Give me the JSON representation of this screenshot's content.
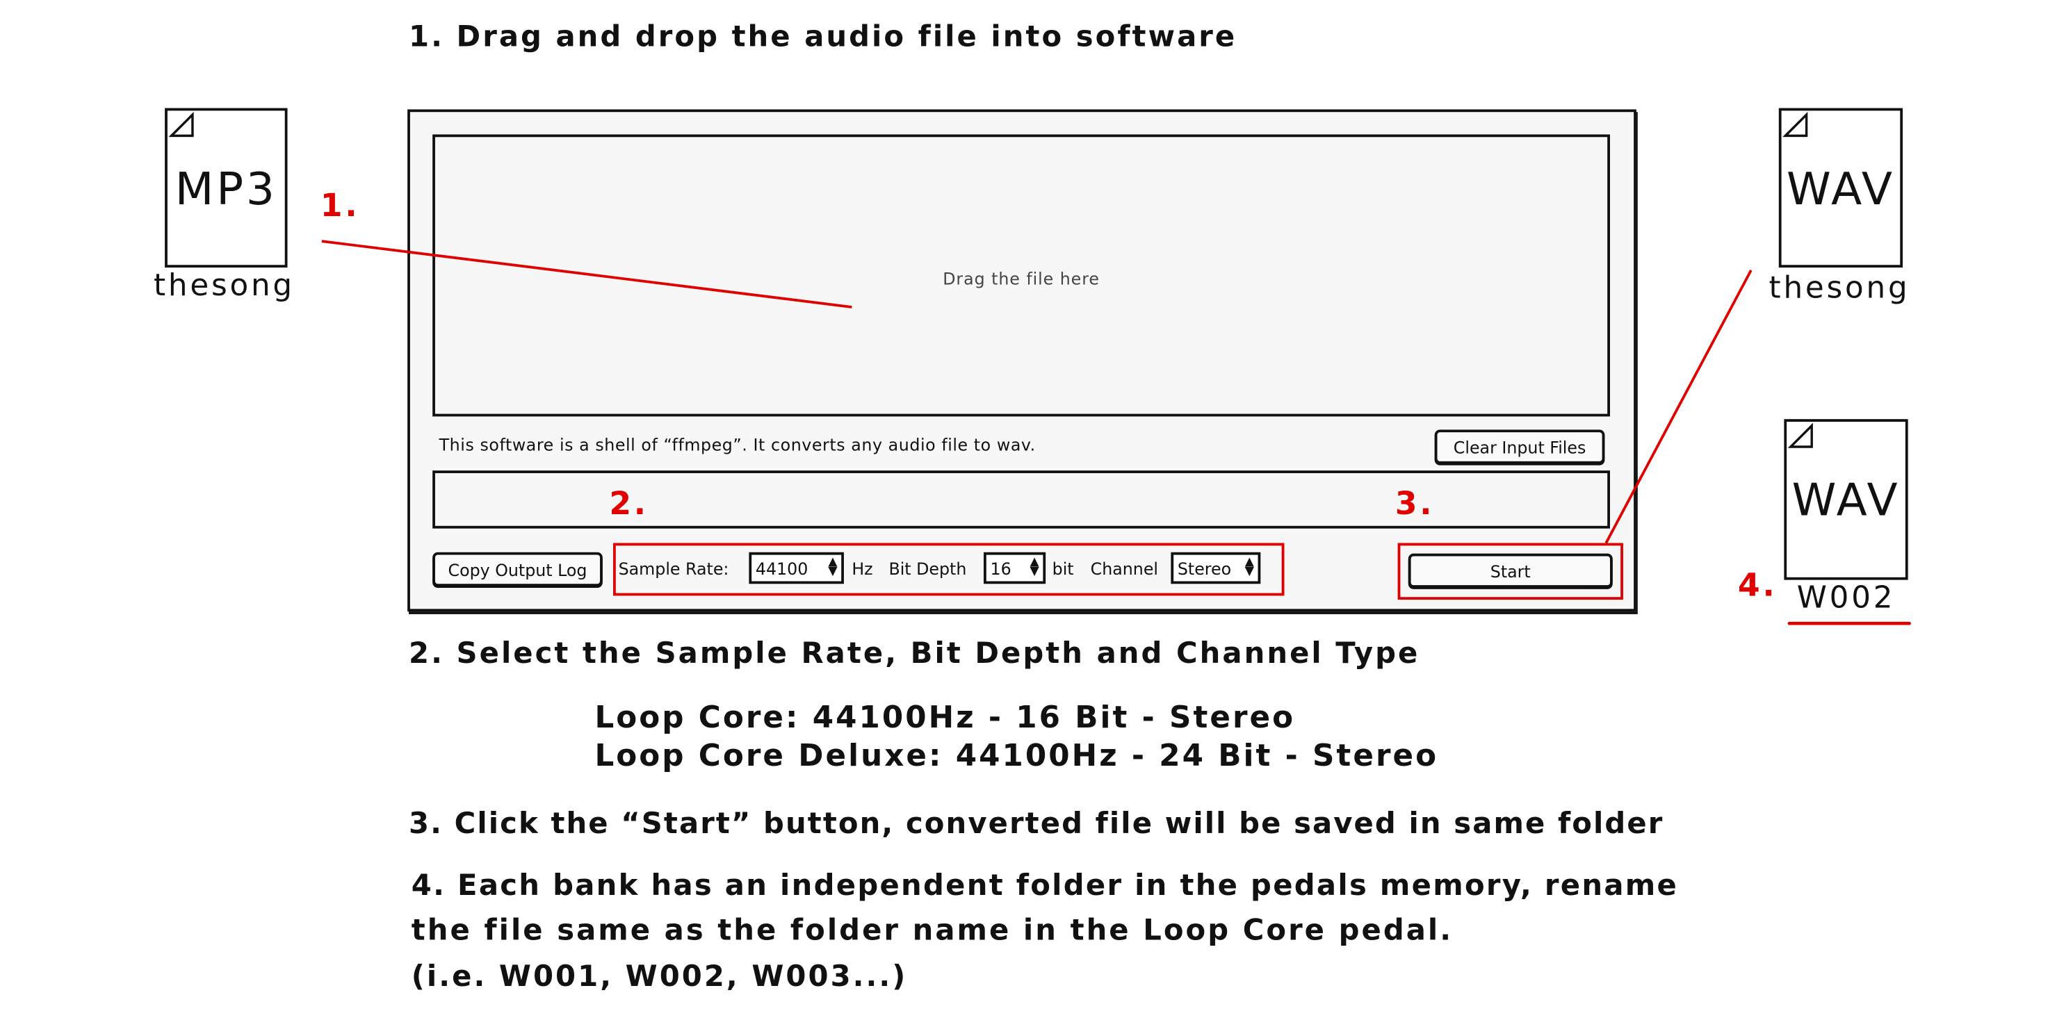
{
  "steps": {
    "step1": "1. Drag and drop the audio file into software",
    "step2": "2. Select the Sample Rate, Bit Depth and Channel Type",
    "presets": [
      "Loop Core: 44100Hz - 16 Bit - Stereo",
      "Loop Core Deluxe: 44100Hz - 24 Bit - Stereo"
    ],
    "step3": "3. Click the “Start” button, converted file will be saved in same folder",
    "step4": [
      "4. Each bank has an independent folder in the pedals memory, rename",
      "the file same as the folder name in the Loop Core pedal.",
      "(i.e. W001, W002, W003...)"
    ]
  },
  "markers": {
    "m1": "1.",
    "m2": "2.",
    "m3": "3.",
    "m4": "4."
  },
  "files": {
    "input": {
      "type": "MP3",
      "name": "thesong"
    },
    "output": {
      "type": "WAV",
      "name": "thesong"
    },
    "renamed": {
      "type": "WAV",
      "name": "W002"
    }
  },
  "app": {
    "drop_hint": "Drag the file here",
    "info": "This software is a shell of “ffmpeg”. It converts any audio file to wav.",
    "clear_button": "Clear Input Files",
    "copy_log_button": "Copy Output Log",
    "sample_rate_label": "Sample Rate:",
    "sample_rate_value": "44100",
    "hz_label": "Hz",
    "bit_depth_label": "Bit Depth",
    "bit_depth_value": "16",
    "bit_label": "bit",
    "channel_label": "Channel",
    "channel_value": "Stereo",
    "start_button": "Start"
  },
  "colors": {
    "annotation": "#e00000",
    "outline": "#111111",
    "panel": "#f7f7f7"
  }
}
